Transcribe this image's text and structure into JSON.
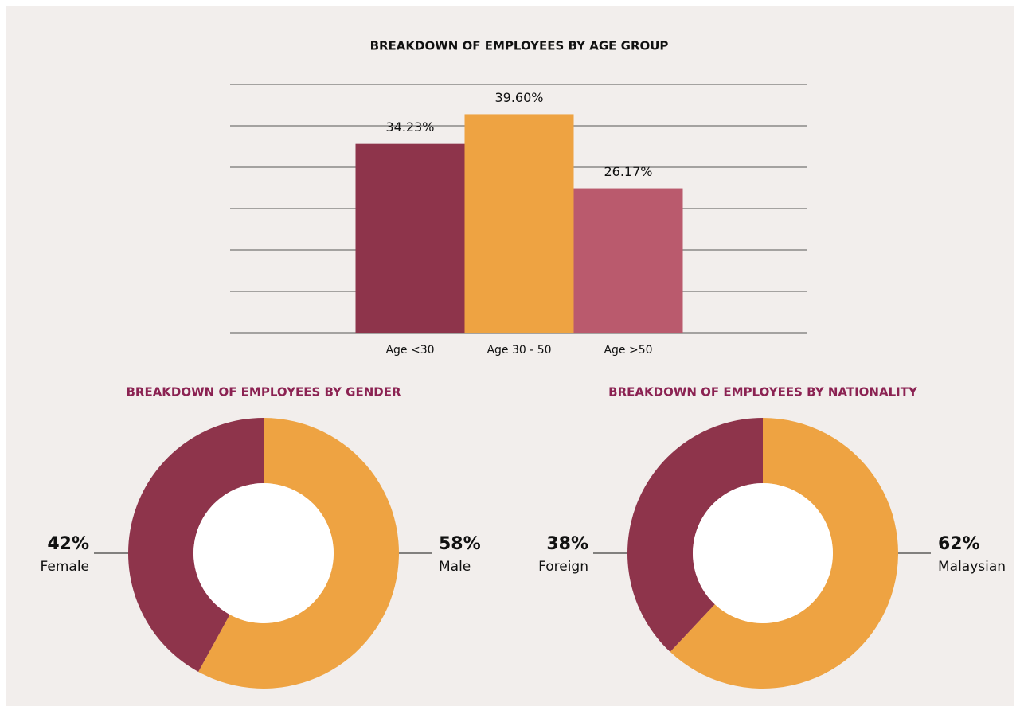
{
  "chart_data": [
    {
      "type": "bar",
      "title": "BREAKDOWN OF EMPLOYEES BY AGE GROUP",
      "categories": [
        "Age <30",
        "Age 30 - 50",
        "Age >50"
      ],
      "values": [
        34.23,
        39.6,
        26.17
      ],
      "value_labels": [
        "34.23%",
        "39.60%",
        "26.17%"
      ],
      "colors": [
        "#8e344b",
        "#eea342",
        "#ba5a6d"
      ],
      "ylim": [
        0,
        45
      ],
      "yticks": [
        0,
        7.5,
        15,
        22.5,
        30,
        37.5,
        45
      ],
      "grid": true
    },
    {
      "type": "donut",
      "title": "BREAKDOWN OF EMPLOYEES BY GENDER",
      "categories": [
        "Male",
        "Female"
      ],
      "values": [
        58,
        42
      ],
      "value_labels": [
        "58%",
        "42%"
      ],
      "colors": [
        "#eea342",
        "#8e344b"
      ]
    },
    {
      "type": "donut",
      "title": "BREAKDOWN OF EMPLOYEES BY NATIONALITY",
      "categories": [
        "Malaysian",
        "Foreign"
      ],
      "values": [
        62,
        38
      ],
      "value_labels": [
        "62%",
        "38%"
      ],
      "colors": [
        "#eea342",
        "#8e344b"
      ]
    }
  ]
}
